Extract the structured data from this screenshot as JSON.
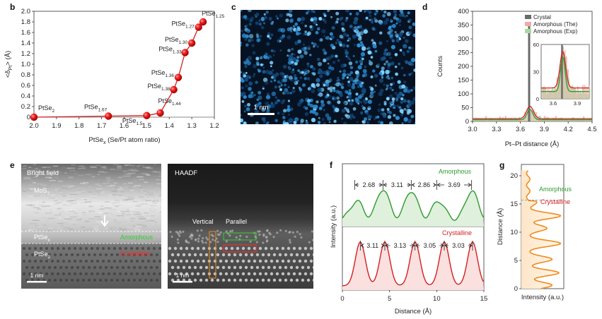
{
  "panels": {
    "b": {
      "label": "b"
    },
    "c": {
      "label": "c",
      "scalebar": "1 nm"
    },
    "d": {
      "label": "d"
    },
    "e": {
      "label": "e",
      "left_title": "Bright field",
      "right_title": "HAADF",
      "mos2": "MoS",
      "mos2_sub": "2",
      "ptsex": "PtSe",
      "ptsex_sub": "x",
      "ptse2": "PtSe",
      "ptse2_sub": "2",
      "amorphous": "Amorphous",
      "crystalline": "Crystalline",
      "vertical": "Vertical",
      "parallel": "Parallel",
      "scalebar_left": "1 nm",
      "scalebar_right": "1 nm"
    },
    "f": {
      "label": "f"
    },
    "g": {
      "label": "g"
    }
  },
  "colors": {
    "red": "#d41f1f",
    "green": "#2e9a2e",
    "orange": "#f08a1c",
    "crystal_bar": "#6b6b6b"
  },
  "chart_data": [
    {
      "id": "b",
      "type": "line",
      "xlabel": "PtSe",
      "xlabel_sub": "x",
      "xlabel_rest": " (Se/Pt atom ratio)",
      "ylabel": "<δ",
      "ylabel_sub": "Pt",
      "ylabel_rest": "> (Å)",
      "xlim": [
        2.0,
        1.2
      ],
      "ylim": [
        0,
        2.0
      ],
      "xticks": [
        "2.0",
        "1.9",
        "1.8",
        "1.7",
        "1.6",
        "1.5",
        "1.4",
        "1.3",
        "1.2"
      ],
      "yticks": [
        "0",
        "0.2",
        "0.4",
        "0.6",
        "0.8",
        "1.0",
        "1.2",
        "1.4",
        "1.6",
        "1.8",
        "2.0"
      ],
      "x": [
        2.0,
        1.67,
        1.5,
        1.44,
        1.38,
        1.36,
        1.33,
        1.3,
        1.27,
        1.25
      ],
      "y": [
        0.0,
        0.02,
        0.03,
        0.08,
        0.52,
        0.75,
        1.22,
        1.4,
        1.7,
        1.8
      ],
      "point_labels": [
        {
          "t": "PtSe",
          "s": "2"
        },
        {
          "t": "PtSe",
          "s": "1.67"
        },
        {
          "t": "PtSe",
          "s": "1.5"
        },
        {
          "t": "PtSe",
          "s": "1.44"
        },
        {
          "t": "PtSe",
          "s": "1.38"
        },
        {
          "t": "PtSe",
          "s": "1.36"
        },
        {
          "t": "PtSe",
          "s": "1.33"
        },
        {
          "t": "PtSe",
          "s": "1.30"
        },
        {
          "t": "PtSe",
          "s": "1.27"
        },
        {
          "t": "PtSe",
          "s": "1.25"
        }
      ]
    },
    {
      "id": "d",
      "type": "bar",
      "xlabel": "Pt–Pt distance (Å)",
      "ylabel": "Counts",
      "xlim": [
        3.0,
        4.5
      ],
      "ylim": [
        0,
        400
      ],
      "xticks": [
        "3.0",
        "3.3",
        "3.6",
        "3.9",
        "4.2",
        "4.5"
      ],
      "yticks": [
        "0",
        "50",
        "100",
        "150",
        "200",
        "250",
        "300",
        "350",
        "400"
      ],
      "legend": [
        "Crystal",
        "Amorphous (The)",
        "Amorphous (Exp)"
      ],
      "legend_position": "top-right",
      "crystal": {
        "x": 3.71,
        "y": 350
      },
      "inset": {
        "ylim": [
          0,
          60
        ],
        "yticks": [
          "0",
          "30",
          "60"
        ],
        "xticks": [
          "3.6",
          "3.9"
        ],
        "xlim": [
          3.45,
          4.05
        ]
      }
    },
    {
      "id": "f",
      "type": "line",
      "xlabel": "Distance (Å)",
      "ylabel": "Intensity (a.u.)",
      "xlim": [
        0,
        15
      ],
      "xticks": [
        "0",
        "5",
        "10",
        "15"
      ],
      "series": [
        {
          "name": "Amorphous",
          "spacings": [
            "2.68",
            "3.11",
            "2.86",
            "3.69"
          ]
        },
        {
          "name": "Crystalline",
          "spacings": [
            "3.11",
            "3.13",
            "3.05",
            "3.03"
          ]
        }
      ]
    },
    {
      "id": "g",
      "type": "line",
      "xlabel": "Intensity (a.u.)",
      "ylabel": "Distance (Å)",
      "ylim": [
        0,
        22
      ],
      "yticks": [
        "0",
        "5",
        "10",
        "15",
        "20"
      ],
      "labels": [
        "Amorphous",
        "Crystalline"
      ],
      "boundary": 15.7
    }
  ]
}
